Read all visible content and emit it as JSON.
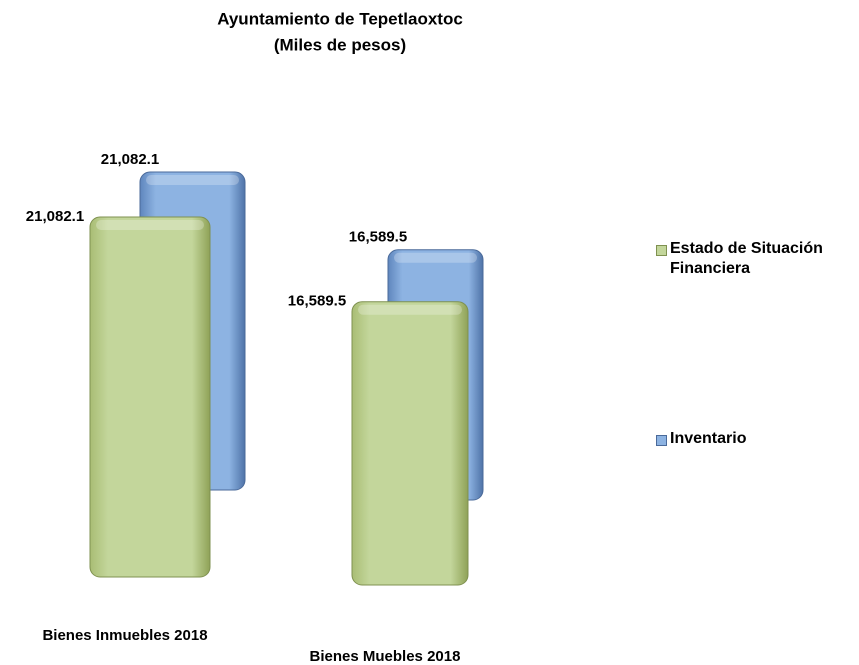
{
  "chart_data": {
    "type": "bar3d",
    "title": "Ayuntamiento de Tepetlaoxtoc",
    "subtitle": "(Miles de pesos)",
    "categories": [
      "Bienes Inmuebles 2018",
      "Bienes Muebles 2018"
    ],
    "series": [
      {
        "name": "Estado de Situación Financiera",
        "color": "#c3d69b",
        "values": [
          21082.1,
          16589.5
        ],
        "value_labels": [
          "21,082.1",
          "16,589.5"
        ]
      },
      {
        "name": "Inventario",
        "color": "#8db3e2",
        "values": [
          21082.1,
          16589.5
        ],
        "value_labels": [
          "21,082.1",
          "16,589.5"
        ]
      }
    ],
    "legend": "right"
  }
}
